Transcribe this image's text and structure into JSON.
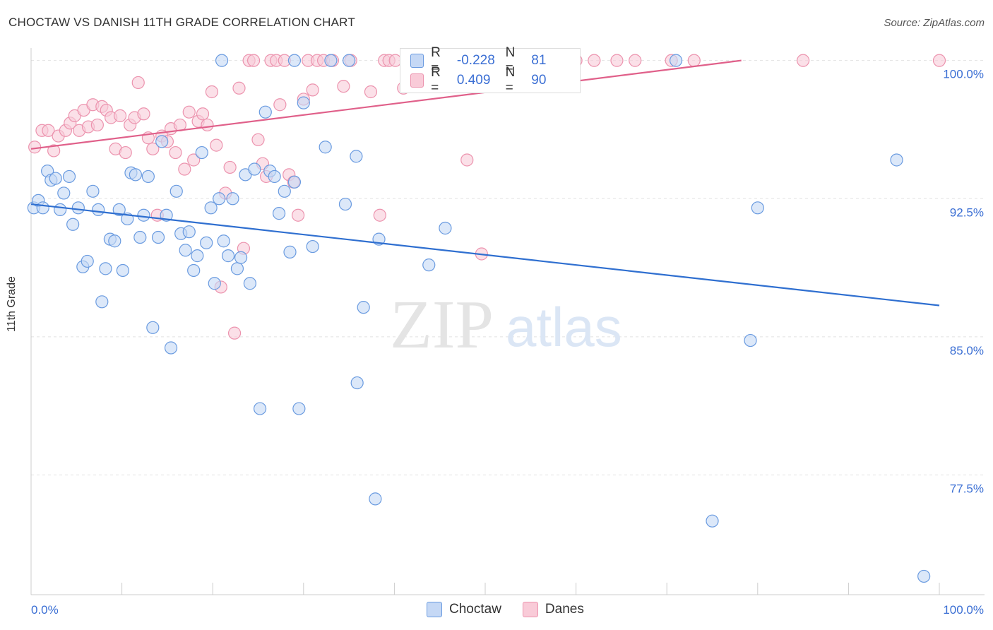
{
  "header": {
    "title": "CHOCTAW VS DANISH 11TH GRADE CORRELATION CHART",
    "source": "Source: ZipAtlas.com"
  },
  "legend": {
    "r_label": "R =",
    "n_label": "N =",
    "series": [
      {
        "r": "-0.228",
        "n": "81"
      },
      {
        "r": "0.409",
        "n": "90"
      }
    ]
  },
  "bottom_legend": [
    "Choctaw",
    "Danes"
  ],
  "watermark": {
    "zip": "ZIP",
    "atlas": "atlas"
  },
  "colors": {
    "choctaw_fill": "#c5d8f5",
    "choctaw_stroke": "#6a9be0",
    "choctaw_line": "#2f6fd0",
    "danes_fill": "#f9cbd8",
    "danes_stroke": "#ec93ae",
    "danes_line": "#e0608a",
    "tick_label": "#3b6fd4"
  },
  "chart_data": {
    "type": "scatter",
    "title": "CHOCTAW VS DANISH 11TH GRADE CORRELATION CHART",
    "ylabel": "11th Grade",
    "xlabel": "",
    "xlim": [
      0,
      100
    ],
    "ylim": [
      71,
      100.6
    ],
    "x_tick_labels": [
      "0.0%",
      "100.0%"
    ],
    "y_ticks": [
      100.0,
      92.5,
      85.0,
      77.5
    ],
    "y_tick_labels": [
      "100.0%",
      "92.5%",
      "85.0%",
      "77.5%"
    ],
    "grid": true,
    "legend_placement": "top-center",
    "series": [
      {
        "name": "Choctaw",
        "r": -0.228,
        "n": 81,
        "trend": {
          "x": [
            0,
            100
          ],
          "y": [
            92.2,
            86.7
          ]
        },
        "points": [
          [
            0.3,
            92.0
          ],
          [
            0.8,
            92.4
          ],
          [
            1.3,
            92.0
          ],
          [
            1.8,
            94.0
          ],
          [
            2.2,
            93.5
          ],
          [
            2.7,
            93.6
          ],
          [
            3.2,
            91.9
          ],
          [
            3.6,
            92.8
          ],
          [
            4.2,
            93.7
          ],
          [
            4.6,
            91.1
          ],
          [
            5.2,
            92.0
          ],
          [
            5.7,
            88.8
          ],
          [
            6.2,
            89.1
          ],
          [
            6.8,
            92.9
          ],
          [
            7.4,
            91.9
          ],
          [
            7.8,
            86.9
          ],
          [
            8.2,
            88.7
          ],
          [
            8.7,
            90.3
          ],
          [
            9.2,
            90.2
          ],
          [
            9.7,
            91.9
          ],
          [
            10.1,
            88.6
          ],
          [
            10.6,
            91.4
          ],
          [
            11.0,
            93.9
          ],
          [
            11.5,
            93.8
          ],
          [
            12.0,
            90.4
          ],
          [
            12.4,
            91.6
          ],
          [
            12.9,
            93.7
          ],
          [
            13.4,
            85.5
          ],
          [
            14.0,
            90.4
          ],
          [
            14.4,
            95.6
          ],
          [
            14.9,
            91.6
          ],
          [
            15.4,
            84.4
          ],
          [
            16.0,
            92.9
          ],
          [
            16.5,
            90.6
          ],
          [
            17.0,
            89.7
          ],
          [
            17.4,
            90.7
          ],
          [
            17.9,
            88.6
          ],
          [
            18.3,
            89.4
          ],
          [
            18.8,
            95.0
          ],
          [
            19.3,
            90.1
          ],
          [
            19.8,
            92.0
          ],
          [
            20.2,
            87.9
          ],
          [
            20.7,
            92.5
          ],
          [
            21.2,
            90.2
          ],
          [
            21.7,
            89.4
          ],
          [
            22.2,
            92.5
          ],
          [
            22.7,
            88.7
          ],
          [
            23.1,
            89.3
          ],
          [
            23.6,
            93.8
          ],
          [
            24.1,
            87.9
          ],
          [
            24.6,
            94.1
          ],
          [
            25.2,
            81.1
          ],
          [
            25.8,
            97.2
          ],
          [
            26.3,
            94.0
          ],
          [
            26.8,
            93.7
          ],
          [
            27.3,
            91.7
          ],
          [
            27.9,
            92.9
          ],
          [
            28.5,
            89.6
          ],
          [
            29.0,
            93.4
          ],
          [
            29.5,
            81.1
          ],
          [
            30.0,
            97.7
          ],
          [
            31.0,
            89.9
          ],
          [
            32.4,
            95.3
          ],
          [
            34.6,
            92.2
          ],
          [
            35.8,
            94.8
          ],
          [
            35.9,
            82.5
          ],
          [
            36.6,
            86.6
          ],
          [
            37.9,
            76.2
          ],
          [
            38.3,
            90.3
          ],
          [
            43.8,
            88.9
          ],
          [
            45.6,
            90.9
          ],
          [
            29.0,
            100.0
          ],
          [
            33.0,
            100.0
          ],
          [
            35.0,
            100.0
          ],
          [
            75.0,
            75.0
          ],
          [
            79.2,
            84.8
          ],
          [
            80.0,
            92.0
          ],
          [
            95.3,
            94.6
          ],
          [
            98.3,
            72.0
          ],
          [
            71.0,
            100.0
          ],
          [
            21.0,
            100.0
          ]
        ]
      },
      {
        "name": "Danes",
        "r": 0.409,
        "n": 90,
        "trend": {
          "x": [
            0,
            78.2
          ],
          "y": [
            95.2,
            100.0
          ]
        },
        "points": [
          [
            0.4,
            95.3
          ],
          [
            1.2,
            96.2
          ],
          [
            1.9,
            96.2
          ],
          [
            2.5,
            95.1
          ],
          [
            3.0,
            95.9
          ],
          [
            3.8,
            96.2
          ],
          [
            4.3,
            96.6
          ],
          [
            4.8,
            97.0
          ],
          [
            5.3,
            96.2
          ],
          [
            5.8,
            97.3
          ],
          [
            6.3,
            96.4
          ],
          [
            6.8,
            97.6
          ],
          [
            7.3,
            96.5
          ],
          [
            7.8,
            97.5
          ],
          [
            8.3,
            97.3
          ],
          [
            8.8,
            96.9
          ],
          [
            9.3,
            95.2
          ],
          [
            9.8,
            97.0
          ],
          [
            10.4,
            95.0
          ],
          [
            10.9,
            96.5
          ],
          [
            11.4,
            96.9
          ],
          [
            11.8,
            98.8
          ],
          [
            12.4,
            97.1
          ],
          [
            12.9,
            95.8
          ],
          [
            13.4,
            95.2
          ],
          [
            13.9,
            91.6
          ],
          [
            14.4,
            95.9
          ],
          [
            15.0,
            95.6
          ],
          [
            15.4,
            96.3
          ],
          [
            15.9,
            95.0
          ],
          [
            16.4,
            96.5
          ],
          [
            16.9,
            94.1
          ],
          [
            17.4,
            97.2
          ],
          [
            17.9,
            94.6
          ],
          [
            18.4,
            96.7
          ],
          [
            18.9,
            97.1
          ],
          [
            19.4,
            96.5
          ],
          [
            19.9,
            98.3
          ],
          [
            20.4,
            95.4
          ],
          [
            20.9,
            87.7
          ],
          [
            21.4,
            92.8
          ],
          [
            21.9,
            94.2
          ],
          [
            22.4,
            85.2
          ],
          [
            22.9,
            98.5
          ],
          [
            23.4,
            89.8
          ],
          [
            24.0,
            100.0
          ],
          [
            24.5,
            100.0
          ],
          [
            25.0,
            95.7
          ],
          [
            25.5,
            94.4
          ],
          [
            25.9,
            93.7
          ],
          [
            26.4,
            100.0
          ],
          [
            27.0,
            100.0
          ],
          [
            27.4,
            97.6
          ],
          [
            27.9,
            100.0
          ],
          [
            28.4,
            93.8
          ],
          [
            28.9,
            93.4
          ],
          [
            29.4,
            91.6
          ],
          [
            30.0,
            97.9
          ],
          [
            30.5,
            100.0
          ],
          [
            31.0,
            98.4
          ],
          [
            31.5,
            100.0
          ],
          [
            32.2,
            100.0
          ],
          [
            33.2,
            100.0
          ],
          [
            34.4,
            98.6
          ],
          [
            35.2,
            100.0
          ],
          [
            37.4,
            98.3
          ],
          [
            38.4,
            91.6
          ],
          [
            38.9,
            100.0
          ],
          [
            39.4,
            100.0
          ],
          [
            40.1,
            100.0
          ],
          [
            41.0,
            98.5
          ],
          [
            42.0,
            100.0
          ],
          [
            43.5,
            100.0
          ],
          [
            45.0,
            100.0
          ],
          [
            46.0,
            100.0
          ],
          [
            48.0,
            94.6
          ],
          [
            49.0,
            100.0
          ],
          [
            49.6,
            89.5
          ],
          [
            51.0,
            100.0
          ],
          [
            54.0,
            100.0
          ],
          [
            59.0,
            100.0
          ],
          [
            60.0,
            100.0
          ],
          [
            62.0,
            100.0
          ],
          [
            64.5,
            100.0
          ],
          [
            66.5,
            100.0
          ],
          [
            70.5,
            100.0
          ],
          [
            73.0,
            100.0
          ],
          [
            85.0,
            100.0
          ],
          [
            100.0,
            100.0
          ],
          [
            56.8,
            100.0
          ]
        ]
      }
    ]
  }
}
